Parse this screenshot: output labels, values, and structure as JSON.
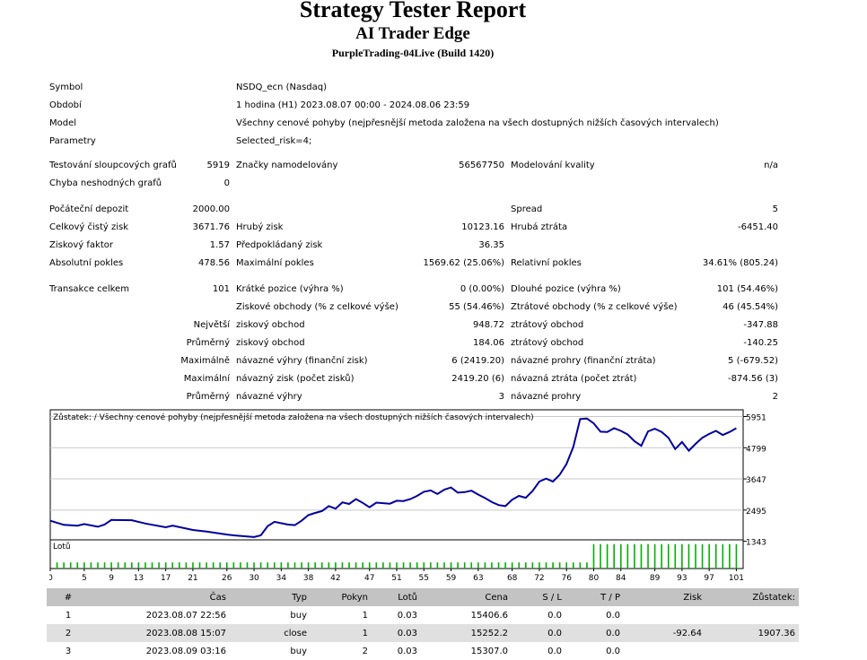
{
  "header": {
    "title": "Strategy Tester Report",
    "ea_name": "AI Trader Edge",
    "server": "PurpleTrading-04Live (Build 1420)"
  },
  "settings": {
    "symbol_label": "Symbol",
    "symbol_value": "NSDQ_ecn (Nasdaq)",
    "period_label": "Období",
    "period_value": "1 hodina (H1) 2023.08.07 00:00 - 2024.08.06 23:59",
    "model_label": "Model",
    "model_value": "Všechny cenové pohyby (nejpřesnější metoda založena na všech dostupných nižších časových intervalech)",
    "params_label": "Parametry",
    "params_value": "Selected_risk=4;"
  },
  "quality": {
    "bars_label": "Testování sloupcových grafů",
    "bars_value": "5919",
    "ticks_label": "Značky namodelovány",
    "ticks_value": "56567750",
    "modelq_label": "Modelování kvality",
    "modelq_value": "n/a",
    "mismatch_label": "Chyba neshodných grafů",
    "mismatch_value": "0"
  },
  "results": {
    "deposit_label": "Počáteční depozit",
    "deposit_value": "2000.00",
    "spread_label": "Spread",
    "spread_value": "5",
    "netprofit_label": "Celkový čistý zisk",
    "netprofit_value": "3671.76",
    "grossprofit_label": "Hrubý zisk",
    "grossprofit_value": "10123.16",
    "grossloss_label": "Hrubá ztráta",
    "grossloss_value": "-6451.40",
    "pf_label": "Ziskový faktor",
    "pf_value": "1.57",
    "expected_label": "Předpokládaný zisk",
    "expected_value": "36.35",
    "absdd_label": "Absolutní pokles",
    "absdd_value": "478.56",
    "maxdd_label": "Maximální pokles",
    "maxdd_value": "1569.62 (25.06%)",
    "reldd_label": "Relativní pokles",
    "reldd_value": "34.61% (805.24)"
  },
  "trades": {
    "total_label": "Transakce celkem",
    "total_value": "101",
    "short_label": "Krátké pozice (výhra %)",
    "short_value": "0 (0.00%)",
    "long_label": "Dlouhé pozice (výhra %)",
    "long_value": "101 (54.46%)",
    "profit_trades_label": "Ziskové obchody (% z celkové výše)",
    "profit_trades_value": "55 (54.46%)",
    "loss_trades_label": "Ztrátové obchody (% z celkové výše)",
    "loss_trades_value": "46 (45.54%)",
    "largest_label": "Největší",
    "largest_profit_label": "ziskový obchod",
    "largest_profit_value": "948.72",
    "largest_loss_label": "ztrátový obchod",
    "largest_loss_value": "-347.88",
    "average_label": "Průměrný",
    "avg_profit_label": "ziskový obchod",
    "avg_profit_value": "184.06",
    "avg_loss_label": "ztrátový obchod",
    "avg_loss_value": "-140.25",
    "maximal_label": "Maximálně",
    "max_consec_wins_label": "návazné výhry (finanční zisk)",
    "max_consec_wins_value": "6 (2419.20)",
    "max_consec_losses_label": "návazné prohry (finanční ztráta)",
    "max_consec_losses_value": "5 (-679.52)",
    "maximum_label": "Maximální",
    "max_consec_profit_label": "návazný zisk (počet zisků)",
    "max_consec_profit_value": "2419.20 (6)",
    "max_consec_loss_label": "návazná ztráta (počet ztrát)",
    "max_consec_loss_value": "-874.56 (3)",
    "average2_label": "Průměrný",
    "avg_consec_wins_label": "návazné výhry",
    "avg_consec_wins_value": "3",
    "avg_consec_losses_label": "návazné prohry",
    "avg_consec_losses_value": "2"
  },
  "chart_data": [
    {
      "type": "line",
      "title": "Zůstatek: / Všechny cenové pohyby (nejpřesnější metoda založena na všech dostupných nižších časových intervalech)",
      "x": [
        0,
        2,
        4,
        5,
        7,
        8,
        9,
        12,
        14,
        17,
        18,
        21,
        23,
        26,
        27,
        29,
        30,
        31,
        32,
        33,
        35,
        36,
        37,
        38,
        39,
        40,
        41,
        42,
        43,
        44,
        45,
        46,
        47,
        48,
        50,
        51,
        52,
        53,
        54,
        55,
        56,
        57,
        58,
        59,
        60,
        61,
        62,
        63,
        64,
        65,
        66,
        67,
        68,
        69,
        70,
        71,
        72,
        73,
        74,
        75,
        76,
        77,
        78,
        79,
        80,
        81,
        82,
        83,
        84,
        85,
        86,
        87,
        88,
        89,
        90,
        91,
        92,
        93,
        94,
        95,
        96,
        97,
        98,
        99,
        100,
        101
      ],
      "y": [
        2100,
        1950,
        1920,
        1980,
        1880,
        1960,
        2130,
        2120,
        2000,
        1860,
        1920,
        1760,
        1700,
        1590,
        1560,
        1520,
        1500,
        1560,
        1900,
        2060,
        1960,
        1940,
        2100,
        2310,
        2390,
        2460,
        2640,
        2550,
        2780,
        2720,
        2900,
        2760,
        2600,
        2770,
        2730,
        2840,
        2830,
        2900,
        3020,
        3170,
        3220,
        3090,
        3250,
        3330,
        3140,
        3160,
        3210,
        3070,
        2940,
        2790,
        2680,
        2640,
        2880,
        3020,
        2950,
        3200,
        3550,
        3660,
        3550,
        3800,
        4200,
        4830,
        5860,
        5880,
        5700,
        5390,
        5380,
        5520,
        5420,
        5290,
        5040,
        4870,
        5400,
        5500,
        5380,
        5170,
        4750,
        5010,
        4690,
        4940,
        5170,
        5310,
        5420,
        5270,
        5380,
        5520
      ],
      "xlim": [
        0,
        102
      ],
      "ylim": [
        1230,
        6200
      ],
      "y_ticks": [
        1343,
        2495,
        3647,
        4799,
        5951
      ],
      "x_ticks": [
        0,
        5,
        9,
        13,
        17,
        21,
        26,
        30,
        34,
        38,
        42,
        47,
        51,
        55,
        59,
        63,
        68,
        72,
        76,
        80,
        84,
        89,
        93,
        97,
        101
      ],
      "colors": {
        "line": "#00009c",
        "grid": "#c8c8c8"
      }
    },
    {
      "type": "bar",
      "title": "Lotů",
      "lots_from_x": [
        0,
        80
      ],
      "values_note_label": "",
      "levels": [
        0.03,
        0.12
      ],
      "colors": {
        "bar": "#00b000"
      }
    }
  ],
  "deals_table": {
    "headers": [
      "#",
      "Čas",
      "Typ",
      "Pokyn",
      "Lotů",
      "Cena",
      "S / L",
      "T / P",
      "Zisk",
      "Zůstatek:"
    ],
    "rows": [
      [
        "1",
        "2023.08.07 22:56",
        "buy",
        "1",
        "0.03",
        "15406.6",
        "0.0",
        "0.0",
        "",
        ""
      ],
      [
        "2",
        "2023.08.08 15:07",
        "close",
        "1",
        "0.03",
        "15252.2",
        "0.0",
        "0.0",
        "-92.64",
        "1907.36"
      ],
      [
        "3",
        "2023.08.09 03:16",
        "buy",
        "2",
        "0.03",
        "15307.0",
        "0.0",
        "0.0",
        "",
        ""
      ]
    ]
  }
}
